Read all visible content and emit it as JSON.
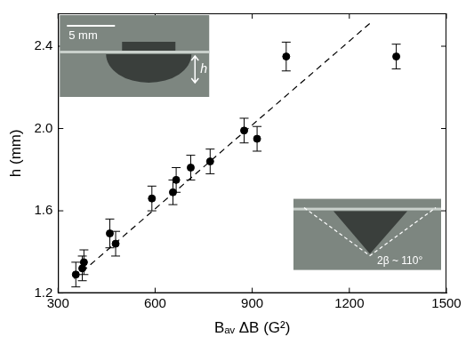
{
  "chart_data": {
    "type": "scatter",
    "x_label": "Bₐᵥ ΔB (G²)",
    "y_label": "h (mm)",
    "x": [
      355,
      375,
      380,
      460,
      478,
      590,
      655,
      665,
      710,
      770,
      875,
      915,
      1005,
      1345
    ],
    "values": [
      1.29,
      1.32,
      1.35,
      1.49,
      1.44,
      1.66,
      1.69,
      1.75,
      1.81,
      1.84,
      1.99,
      1.95,
      2.35,
      2.35
    ],
    "errors": [
      0.06,
      0.06,
      0.06,
      0.07,
      0.06,
      0.06,
      0.06,
      0.06,
      0.06,
      0.06,
      0.06,
      0.06,
      0.07,
      0.06
    ],
    "color": "#000000",
    "marker": "circle",
    "xlim": [
      300,
      1500
    ],
    "xticks": [
      300,
      600,
      900,
      1200,
      1500
    ],
    "ylim": [
      1.2,
      2.56
    ],
    "yticks": [
      1.2,
      1.6,
      {
        "value": 2,
        "label": "2.0"
      },
      2.4
    ],
    "grid": false,
    "fit_line": {
      "x": [
        350,
        1270
      ],
      "values": [
        1.27,
        2.52
      ],
      "line_style": "dashed",
      "color": "#000000"
    },
    "annotations": [
      "5 mm",
      "h",
      "2β ~ 110°"
    ]
  }
}
